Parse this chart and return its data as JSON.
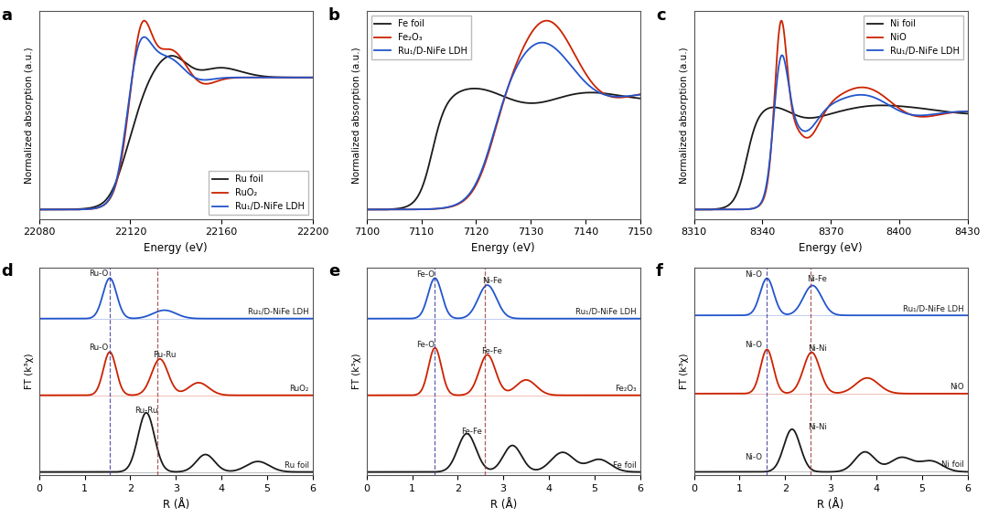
{
  "colors": {
    "black": "#1a1a1a",
    "red": "#cc2200",
    "blue": "#2255cc"
  },
  "panel_a": {
    "xlabel": "Energy (eV)",
    "ylabel": "Normalized absorption (a.u.)",
    "xrange": [
      22080,
      22200
    ],
    "xticks": [
      22080,
      22120,
      22160,
      22200
    ],
    "legend": [
      "Ru foil",
      "RuO₂",
      "Ru₁/D-NiFe LDH"
    ],
    "legend_loc": "lower right"
  },
  "panel_b": {
    "xlabel": "Energy (eV)",
    "ylabel": "Normalized absorption (a.u.)",
    "xrange": [
      7100,
      7150
    ],
    "xticks": [
      7100,
      7110,
      7120,
      7130,
      7140,
      7150
    ],
    "legend": [
      "Fe foil",
      "Fe₂O₃",
      "Ru₁/D-NiFe LDH"
    ],
    "legend_loc": "upper left"
  },
  "panel_c": {
    "xlabel": "Energy (eV)",
    "ylabel": "Normalized absorption (a.u.)",
    "xrange": [
      8310,
      8430
    ],
    "xticks": [
      8310,
      8340,
      8370,
      8400,
      8430
    ],
    "legend": [
      "Ni foil",
      "NiO",
      "Ru₁/D-NiFe LDH"
    ],
    "legend_loc": "upper right"
  },
  "panel_d": {
    "xlabel": "R (Å)",
    "ylabel": "FT (k³χ)",
    "xrange": [
      0,
      6
    ],
    "xticks": [
      0,
      1,
      2,
      3,
      4,
      5,
      6
    ],
    "names": [
      "Ru foil",
      "RuO₂",
      "Ru₁/D-NiFe LDH"
    ],
    "vline1": 1.55,
    "vline2": 2.6,
    "ann_black": [
      [
        "Ru-Ru",
        2.35,
        0.82
      ]
    ],
    "ann_red": [
      [
        "Ru-O",
        1.3,
        0.62
      ],
      [
        "Ru-Ru",
        2.75,
        0.52
      ]
    ],
    "ann_blue": [
      [
        "Ru-O",
        1.3,
        0.58
      ]
    ]
  },
  "panel_e": {
    "xlabel": "R (Å)",
    "ylabel": "FT (k³χ)",
    "xrange": [
      0,
      6
    ],
    "xticks": [
      0,
      1,
      2,
      3,
      4,
      5,
      6
    ],
    "names": [
      "Fe foil",
      "Fe₂O₃",
      "Ru₁/D-NiFe LDH"
    ],
    "vline1": 1.5,
    "vline2": 2.6,
    "ann_black": [
      [
        "Fe-Fe",
        2.3,
        0.52
      ]
    ],
    "ann_red": [
      [
        "Fe-O",
        1.3,
        0.67
      ],
      [
        "Fe-Fe",
        2.75,
        0.57
      ]
    ],
    "ann_blue": [
      [
        "Fe-O",
        1.3,
        0.57
      ],
      [
        "Ni-Fe",
        2.75,
        0.48
      ]
    ]
  },
  "panel_f": {
    "xlabel": "R (Å)",
    "ylabel": "FT (k³χ)",
    "xrange": [
      0,
      6
    ],
    "xticks": [
      0,
      1,
      2,
      3,
      4,
      5,
      6
    ],
    "names": [
      "Ni foil",
      "NiO",
      "Ru₁/D-NiFe LDH"
    ],
    "vline1": 1.6,
    "vline2": 2.55,
    "ann_black": [
      [
        "Ni-O",
        1.3,
        0.15
      ],
      [
        "Ni-Ni",
        2.7,
        0.57
      ]
    ],
    "ann_red": [
      [
        "Ni-O",
        1.3,
        0.63
      ],
      [
        "Ni-Ni",
        2.7,
        0.57
      ]
    ],
    "ann_blue": [
      [
        "Ni-O",
        1.3,
        0.52
      ],
      [
        "Ni-Fe",
        2.7,
        0.45
      ]
    ]
  }
}
